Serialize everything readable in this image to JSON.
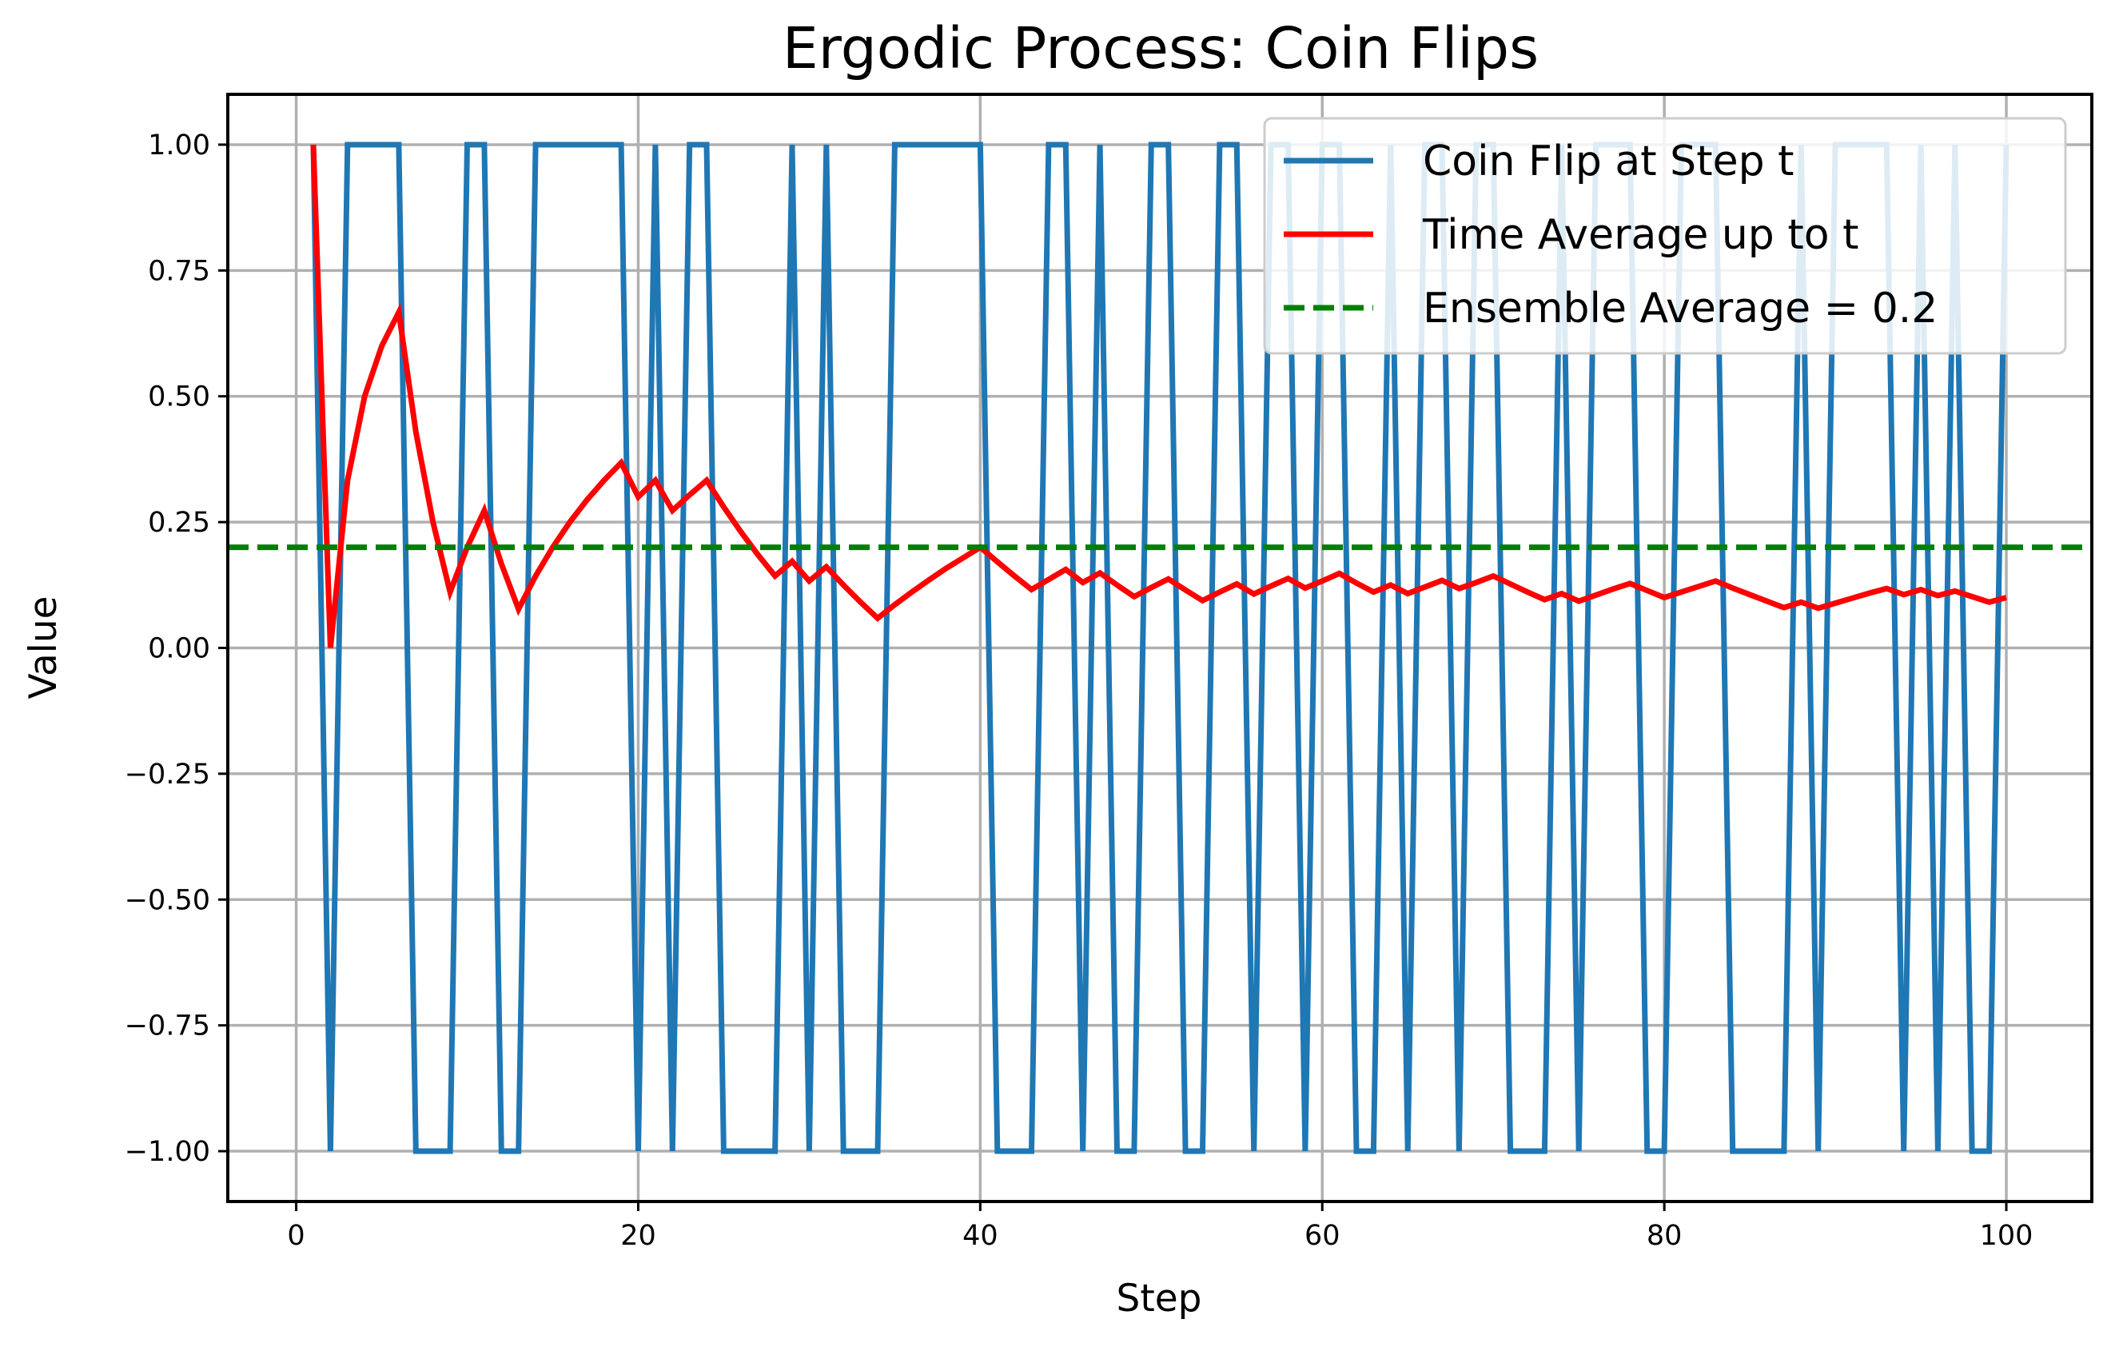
{
  "chart_data": {
    "type": "line",
    "title": "Ergodic Process: Coin Flips",
    "xlabel": "Step",
    "ylabel": "Value",
    "xlim": [
      -4,
      105
    ],
    "ylim": [
      -1.1,
      1.1
    ],
    "grid": true,
    "legend_position": "top-right",
    "xticks": [
      0,
      20,
      40,
      60,
      80,
      100
    ],
    "xtick_labels": [
      "0",
      "20",
      "40",
      "60",
      "80",
      "100"
    ],
    "yticks": [
      1.0,
      0.75,
      0.5,
      0.25,
      0.0,
      -0.25,
      -0.5,
      -0.75,
      -1.0
    ],
    "ytick_labels": [
      "1.00",
      "0.75",
      "0.50",
      "0.25",
      "0.00",
      "−0.25",
      "−0.50",
      "−0.75",
      "−1.00"
    ],
    "series": [
      {
        "name": "Coin Flip at Step t",
        "color": "#1f77b4",
        "style": "solid",
        "x": [
          1,
          2,
          3,
          4,
          5,
          6,
          7,
          8,
          9,
          10,
          11,
          12,
          13,
          14,
          15,
          16,
          17,
          18,
          19,
          20,
          21,
          22,
          23,
          24,
          25,
          26,
          27,
          28,
          29,
          30,
          31,
          32,
          33,
          34,
          35,
          36,
          37,
          38,
          39,
          40,
          41,
          42,
          43,
          44,
          45,
          46,
          47,
          48,
          49,
          50,
          51,
          52,
          53,
          54,
          55,
          56,
          57,
          58,
          59,
          60,
          61,
          62,
          63,
          64,
          65,
          66,
          67,
          68,
          69,
          70,
          71,
          72,
          73,
          74,
          75,
          76,
          77,
          78,
          79,
          80,
          81,
          82,
          83,
          84,
          85,
          86,
          87,
          88,
          89,
          90,
          91,
          92,
          93,
          94,
          95,
          96,
          97,
          98,
          99,
          100
        ],
        "y": [
          1,
          -1,
          1,
          1,
          1,
          1,
          -1,
          -1,
          -1,
          1,
          1,
          -1,
          -1,
          1,
          1,
          1,
          1,
          1,
          1,
          -1,
          1,
          -1,
          1,
          1,
          -1,
          -1,
          -1,
          -1,
          1,
          -1,
          1,
          -1,
          -1,
          -1,
          1,
          1,
          1,
          1,
          1,
          1,
          -1,
          -1,
          -1,
          1,
          1,
          -1,
          1,
          -1,
          -1,
          1,
          1,
          -1,
          -1,
          1,
          1,
          -1,
          1,
          1,
          -1,
          1,
          1,
          -1,
          -1,
          1,
          -1,
          1,
          1,
          -1,
          1,
          1,
          -1,
          -1,
          -1,
          1,
          -1,
          1,
          1,
          1,
          -1,
          -1,
          1,
          1,
          1,
          -1,
          -1,
          -1,
          -1,
          1,
          -1,
          1,
          1,
          1,
          1,
          -1,
          1,
          -1,
          1,
          -1,
          -1,
          1
        ]
      },
      {
        "name": "Time Average up to t",
        "color": "#ff0000",
        "style": "solid",
        "x": [
          1,
          2,
          3,
          4,
          5,
          6,
          7,
          8,
          9,
          10,
          11,
          12,
          13,
          14,
          15,
          16,
          17,
          18,
          19,
          20,
          21,
          22,
          23,
          24,
          25,
          26,
          27,
          28,
          29,
          30,
          31,
          32,
          33,
          34,
          35,
          36,
          37,
          38,
          39,
          40,
          41,
          42,
          43,
          44,
          45,
          46,
          47,
          48,
          49,
          50,
          51,
          52,
          53,
          54,
          55,
          56,
          57,
          58,
          59,
          60,
          61,
          62,
          63,
          64,
          65,
          66,
          67,
          68,
          69,
          70,
          71,
          72,
          73,
          74,
          75,
          76,
          77,
          78,
          79,
          80,
          81,
          82,
          83,
          84,
          85,
          86,
          87,
          88,
          89,
          90,
          91,
          92,
          93,
          94,
          95,
          96,
          97,
          98,
          99,
          100
        ],
        "y": [
          1.0,
          0.0,
          0.333,
          0.5,
          0.6,
          0.667,
          0.429,
          0.25,
          0.111,
          0.2,
          0.273,
          0.167,
          0.077,
          0.143,
          0.2,
          0.25,
          0.294,
          0.333,
          0.368,
          0.3,
          0.333,
          0.273,
          0.304,
          0.333,
          0.28,
          0.231,
          0.185,
          0.143,
          0.172,
          0.133,
          0.161,
          0.125,
          0.091,
          0.059,
          0.086,
          0.111,
          0.135,
          0.158,
          0.179,
          0.2,
          0.171,
          0.143,
          0.116,
          0.136,
          0.156,
          0.13,
          0.149,
          0.125,
          0.102,
          0.12,
          0.137,
          0.115,
          0.094,
          0.111,
          0.127,
          0.107,
          0.123,
          0.138,
          0.119,
          0.133,
          0.148,
          0.129,
          0.111,
          0.125,
          0.108,
          0.121,
          0.134,
          0.118,
          0.13,
          0.143,
          0.127,
          0.111,
          0.096,
          0.108,
          0.093,
          0.105,
          0.117,
          0.128,
          0.114,
          0.1,
          0.111,
          0.122,
          0.133,
          0.119,
          0.106,
          0.093,
          0.08,
          0.091,
          0.079,
          0.089,
          0.099,
          0.109,
          0.118,
          0.106,
          0.116,
          0.104,
          0.113,
          0.102,
          0.091,
          0.1
        ]
      },
      {
        "name": "Ensemble Average = 0.2",
        "color": "#008000",
        "style": "dashed",
        "hline": 0.2
      }
    ]
  }
}
